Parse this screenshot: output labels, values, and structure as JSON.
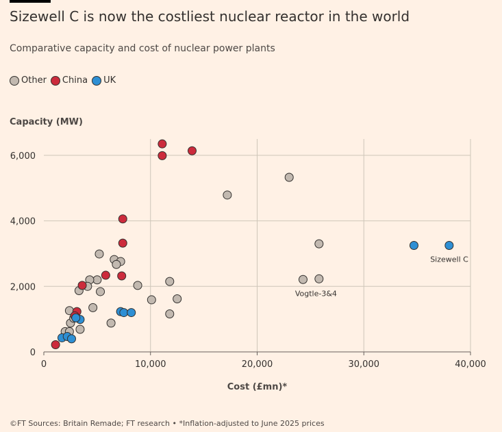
{
  "header": {
    "title": "Sizewell C is now the costliest nuclear reactor in the world",
    "subtitle": "Comparative capacity and cost of nuclear power plants"
  },
  "legend": [
    {
      "label": "Other",
      "color": "#C2B9B0"
    },
    {
      "label": "China",
      "color": "#CC2B3C"
    },
    {
      "label": "UK",
      "color": "#2E8FD4"
    }
  ],
  "footer": "©FT Sources: Britain Remade; FT research • *Inflation-adjusted to June 2025 prices",
  "chart_data": {
    "type": "scatter",
    "title": "Sizewell C is now the costliest nuclear reactor in the world",
    "xlabel": "Cost (£mn)*",
    "ylabel": "Capacity (MW)",
    "xlim": [
      0,
      40000
    ],
    "ylim": [
      0,
      6500
    ],
    "xticks": [
      0,
      10000,
      20000,
      30000,
      40000
    ],
    "xtick_labels": [
      "0",
      "10,000",
      "20,000",
      "30,000",
      "40,000"
    ],
    "yticks": [
      0,
      2000,
      4000,
      6000
    ],
    "ytick_labels": [
      "0",
      "2,000",
      "4,000",
      "6,000"
    ],
    "grid": true,
    "series": [
      {
        "name": "Other",
        "color": "#C2B9B0",
        "points": [
          {
            "x": 23000,
            "y": 5330
          },
          {
            "x": 17200,
            "y": 4790
          },
          {
            "x": 25800,
            "y": 3300
          },
          {
            "x": 24300,
            "y": 2210
          },
          {
            "x": 25800,
            "y": 2230
          },
          {
            "x": 11800,
            "y": 2150
          },
          {
            "x": 12500,
            "y": 1620
          },
          {
            "x": 10100,
            "y": 1590
          },
          {
            "x": 11800,
            "y": 1160
          },
          {
            "x": 8800,
            "y": 2030
          },
          {
            "x": 5200,
            "y": 2990
          },
          {
            "x": 6600,
            "y": 2820
          },
          {
            "x": 7200,
            "y": 2760
          },
          {
            "x": 6800,
            "y": 2670
          },
          {
            "x": 5000,
            "y": 2200
          },
          {
            "x": 4300,
            "y": 2200
          },
          {
            "x": 4100,
            "y": 2000
          },
          {
            "x": 3300,
            "y": 1870
          },
          {
            "x": 5300,
            "y": 1840
          },
          {
            "x": 4600,
            "y": 1350
          },
          {
            "x": 2400,
            "y": 1260
          },
          {
            "x": 6300,
            "y": 880
          },
          {
            "x": 2500,
            "y": 880
          },
          {
            "x": 3400,
            "y": 690
          },
          {
            "x": 2000,
            "y": 620
          },
          {
            "x": 2400,
            "y": 620
          },
          {
            "x": 2800,
            "y": 1030
          }
        ]
      },
      {
        "name": "China",
        "color": "#CC2B3C",
        "points": [
          {
            "x": 11100,
            "y": 6350
          },
          {
            "x": 13900,
            "y": 6140
          },
          {
            "x": 11100,
            "y": 5990
          },
          {
            "x": 7400,
            "y": 4060
          },
          {
            "x": 7400,
            "y": 3320
          },
          {
            "x": 5800,
            "y": 2340
          },
          {
            "x": 7300,
            "y": 2320
          },
          {
            "x": 3600,
            "y": 2030
          },
          {
            "x": 3100,
            "y": 1230
          },
          {
            "x": 2900,
            "y": 1100
          },
          {
            "x": 1100,
            "y": 220
          }
        ]
      },
      {
        "name": "UK",
        "color": "#2E8FD4",
        "points": [
          {
            "x": 34700,
            "y": 3250
          },
          {
            "x": 38000,
            "y": 3250
          },
          {
            "x": 7200,
            "y": 1230
          },
          {
            "x": 7500,
            "y": 1200
          },
          {
            "x": 8200,
            "y": 1200
          },
          {
            "x": 3400,
            "y": 990
          },
          {
            "x": 3000,
            "y": 1040
          },
          {
            "x": 1700,
            "y": 430
          },
          {
            "x": 2200,
            "y": 470
          },
          {
            "x": 2600,
            "y": 400
          }
        ]
      }
    ],
    "annotations": [
      {
        "text": "Sizewell C",
        "x": 38000,
        "y": 3250,
        "anchor": "end"
      },
      {
        "text": "Vogtle-3&4",
        "x": 25000,
        "y": 2210,
        "anchor": "middle"
      }
    ]
  }
}
